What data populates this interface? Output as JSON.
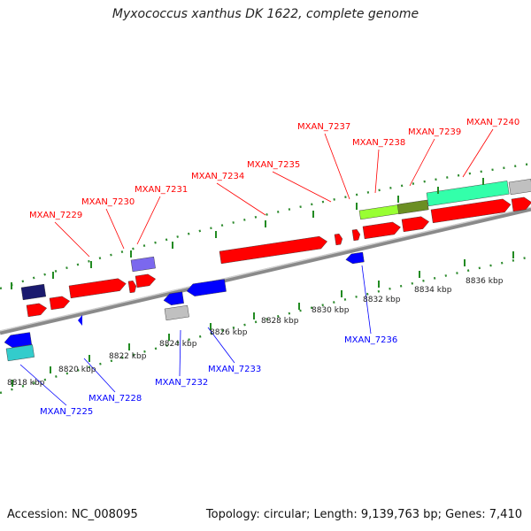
{
  "title": "Myxococcus xanthus DK 1622, complete genome",
  "accession": "Accession: NC_008095",
  "summary": "Topology: circular; Length: 9,139,763 bp; Genes: 7,410",
  "scale_labels": [
    "8818 kbp",
    "8820 kbp",
    "8822 kbp",
    "8824 kbp",
    "8826 kbp",
    "8828 kbp",
    "8830 kbp",
    "8832 kbp",
    "8834 kbp",
    "8836 kbp"
  ],
  "forward_genes": [
    {
      "label": "MXAN_7229",
      "color": "#ff0000"
    },
    {
      "label": "MXAN_7230",
      "color": "#ff0000"
    },
    {
      "label": "MXAN_7231",
      "color": "#ff0000"
    },
    {
      "label": "MXAN_7234",
      "color": "#ff0000"
    },
    {
      "label": "MXAN_7235",
      "color": "#ff0000"
    },
    {
      "label": "MXAN_7237",
      "color": "#ff0000"
    },
    {
      "label": "MXAN_7238",
      "color": "#ff0000"
    },
    {
      "label": "MXAN_7239",
      "color": "#ff0000"
    },
    {
      "label": "MXAN_7240",
      "color": "#ff0000"
    }
  ],
  "reverse_genes": [
    {
      "label": "MXAN_7225",
      "color": "#0000ff"
    },
    {
      "label": "MXAN_7228",
      "color": "#0000ff"
    },
    {
      "label": "MXAN_7232",
      "color": "#0000ff"
    },
    {
      "label": "MXAN_7233",
      "color": "#0000ff"
    },
    {
      "label": "MXAN_7236",
      "color": "#0000ff"
    }
  ],
  "colors": {
    "backbone": "#999999",
    "forward": "#ff0000",
    "reverse": "#0000ff",
    "ticks": "#228b22",
    "navy": "#1a1a6e",
    "lavender": "#7b68ee",
    "grey": "#c0c0c0",
    "cyan": "#33cccc",
    "lime": "#99ff33",
    "olive": "#6b8e23",
    "mint": "#33ffaa"
  }
}
